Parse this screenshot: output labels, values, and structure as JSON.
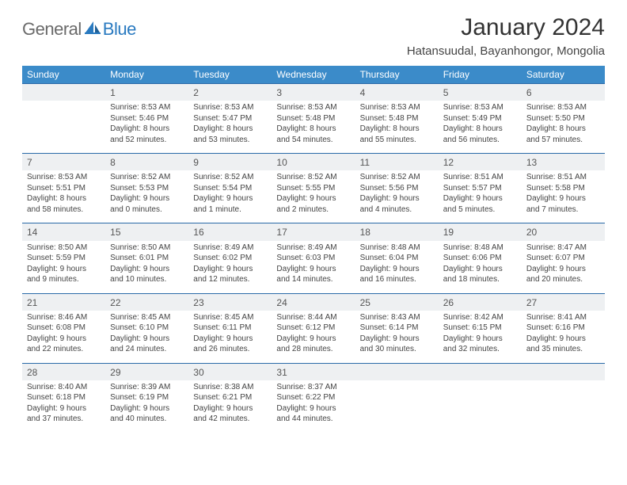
{
  "brand": {
    "part1": "General",
    "part2": "Blue"
  },
  "title": "January 2024",
  "location": "Hatansuudal, Bayanhongor, Mongolia",
  "colors": {
    "header_bg": "#3b8bc9",
    "header_text": "#ffffff",
    "daynum_bg": "#eef0f2",
    "rule": "#2a6aa8",
    "logo_gray": "#6a6a6a",
    "logo_blue": "#2a7ac0"
  },
  "dayNames": [
    "Sunday",
    "Monday",
    "Tuesday",
    "Wednesday",
    "Thursday",
    "Friday",
    "Saturday"
  ],
  "weeks": [
    {
      "nums": [
        "",
        "1",
        "2",
        "3",
        "4",
        "5",
        "6"
      ],
      "cells": [
        null,
        {
          "sunrise": "Sunrise: 8:53 AM",
          "sunset": "Sunset: 5:46 PM",
          "day1": "Daylight: 8 hours",
          "day2": "and 52 minutes."
        },
        {
          "sunrise": "Sunrise: 8:53 AM",
          "sunset": "Sunset: 5:47 PM",
          "day1": "Daylight: 8 hours",
          "day2": "and 53 minutes."
        },
        {
          "sunrise": "Sunrise: 8:53 AM",
          "sunset": "Sunset: 5:48 PM",
          "day1": "Daylight: 8 hours",
          "day2": "and 54 minutes."
        },
        {
          "sunrise": "Sunrise: 8:53 AM",
          "sunset": "Sunset: 5:48 PM",
          "day1": "Daylight: 8 hours",
          "day2": "and 55 minutes."
        },
        {
          "sunrise": "Sunrise: 8:53 AM",
          "sunset": "Sunset: 5:49 PM",
          "day1": "Daylight: 8 hours",
          "day2": "and 56 minutes."
        },
        {
          "sunrise": "Sunrise: 8:53 AM",
          "sunset": "Sunset: 5:50 PM",
          "day1": "Daylight: 8 hours",
          "day2": "and 57 minutes."
        }
      ]
    },
    {
      "nums": [
        "7",
        "8",
        "9",
        "10",
        "11",
        "12",
        "13"
      ],
      "cells": [
        {
          "sunrise": "Sunrise: 8:53 AM",
          "sunset": "Sunset: 5:51 PM",
          "day1": "Daylight: 8 hours",
          "day2": "and 58 minutes."
        },
        {
          "sunrise": "Sunrise: 8:52 AM",
          "sunset": "Sunset: 5:53 PM",
          "day1": "Daylight: 9 hours",
          "day2": "and 0 minutes."
        },
        {
          "sunrise": "Sunrise: 8:52 AM",
          "sunset": "Sunset: 5:54 PM",
          "day1": "Daylight: 9 hours",
          "day2": "and 1 minute."
        },
        {
          "sunrise": "Sunrise: 8:52 AM",
          "sunset": "Sunset: 5:55 PM",
          "day1": "Daylight: 9 hours",
          "day2": "and 2 minutes."
        },
        {
          "sunrise": "Sunrise: 8:52 AM",
          "sunset": "Sunset: 5:56 PM",
          "day1": "Daylight: 9 hours",
          "day2": "and 4 minutes."
        },
        {
          "sunrise": "Sunrise: 8:51 AM",
          "sunset": "Sunset: 5:57 PM",
          "day1": "Daylight: 9 hours",
          "day2": "and 5 minutes."
        },
        {
          "sunrise": "Sunrise: 8:51 AM",
          "sunset": "Sunset: 5:58 PM",
          "day1": "Daylight: 9 hours",
          "day2": "and 7 minutes."
        }
      ]
    },
    {
      "nums": [
        "14",
        "15",
        "16",
        "17",
        "18",
        "19",
        "20"
      ],
      "cells": [
        {
          "sunrise": "Sunrise: 8:50 AM",
          "sunset": "Sunset: 5:59 PM",
          "day1": "Daylight: 9 hours",
          "day2": "and 9 minutes."
        },
        {
          "sunrise": "Sunrise: 8:50 AM",
          "sunset": "Sunset: 6:01 PM",
          "day1": "Daylight: 9 hours",
          "day2": "and 10 minutes."
        },
        {
          "sunrise": "Sunrise: 8:49 AM",
          "sunset": "Sunset: 6:02 PM",
          "day1": "Daylight: 9 hours",
          "day2": "and 12 minutes."
        },
        {
          "sunrise": "Sunrise: 8:49 AM",
          "sunset": "Sunset: 6:03 PM",
          "day1": "Daylight: 9 hours",
          "day2": "and 14 minutes."
        },
        {
          "sunrise": "Sunrise: 8:48 AM",
          "sunset": "Sunset: 6:04 PM",
          "day1": "Daylight: 9 hours",
          "day2": "and 16 minutes."
        },
        {
          "sunrise": "Sunrise: 8:48 AM",
          "sunset": "Sunset: 6:06 PM",
          "day1": "Daylight: 9 hours",
          "day2": "and 18 minutes."
        },
        {
          "sunrise": "Sunrise: 8:47 AM",
          "sunset": "Sunset: 6:07 PM",
          "day1": "Daylight: 9 hours",
          "day2": "and 20 minutes."
        }
      ]
    },
    {
      "nums": [
        "21",
        "22",
        "23",
        "24",
        "25",
        "26",
        "27"
      ],
      "cells": [
        {
          "sunrise": "Sunrise: 8:46 AM",
          "sunset": "Sunset: 6:08 PM",
          "day1": "Daylight: 9 hours",
          "day2": "and 22 minutes."
        },
        {
          "sunrise": "Sunrise: 8:45 AM",
          "sunset": "Sunset: 6:10 PM",
          "day1": "Daylight: 9 hours",
          "day2": "and 24 minutes."
        },
        {
          "sunrise": "Sunrise: 8:45 AM",
          "sunset": "Sunset: 6:11 PM",
          "day1": "Daylight: 9 hours",
          "day2": "and 26 minutes."
        },
        {
          "sunrise": "Sunrise: 8:44 AM",
          "sunset": "Sunset: 6:12 PM",
          "day1": "Daylight: 9 hours",
          "day2": "and 28 minutes."
        },
        {
          "sunrise": "Sunrise: 8:43 AM",
          "sunset": "Sunset: 6:14 PM",
          "day1": "Daylight: 9 hours",
          "day2": "and 30 minutes."
        },
        {
          "sunrise": "Sunrise: 8:42 AM",
          "sunset": "Sunset: 6:15 PM",
          "day1": "Daylight: 9 hours",
          "day2": "and 32 minutes."
        },
        {
          "sunrise": "Sunrise: 8:41 AM",
          "sunset": "Sunset: 6:16 PM",
          "day1": "Daylight: 9 hours",
          "day2": "and 35 minutes."
        }
      ]
    },
    {
      "nums": [
        "28",
        "29",
        "30",
        "31",
        "",
        "",
        ""
      ],
      "cells": [
        {
          "sunrise": "Sunrise: 8:40 AM",
          "sunset": "Sunset: 6:18 PM",
          "day1": "Daylight: 9 hours",
          "day2": "and 37 minutes."
        },
        {
          "sunrise": "Sunrise: 8:39 AM",
          "sunset": "Sunset: 6:19 PM",
          "day1": "Daylight: 9 hours",
          "day2": "and 40 minutes."
        },
        {
          "sunrise": "Sunrise: 8:38 AM",
          "sunset": "Sunset: 6:21 PM",
          "day1": "Daylight: 9 hours",
          "day2": "and 42 minutes."
        },
        {
          "sunrise": "Sunrise: 8:37 AM",
          "sunset": "Sunset: 6:22 PM",
          "day1": "Daylight: 9 hours",
          "day2": "and 44 minutes."
        },
        null,
        null,
        null
      ]
    }
  ]
}
